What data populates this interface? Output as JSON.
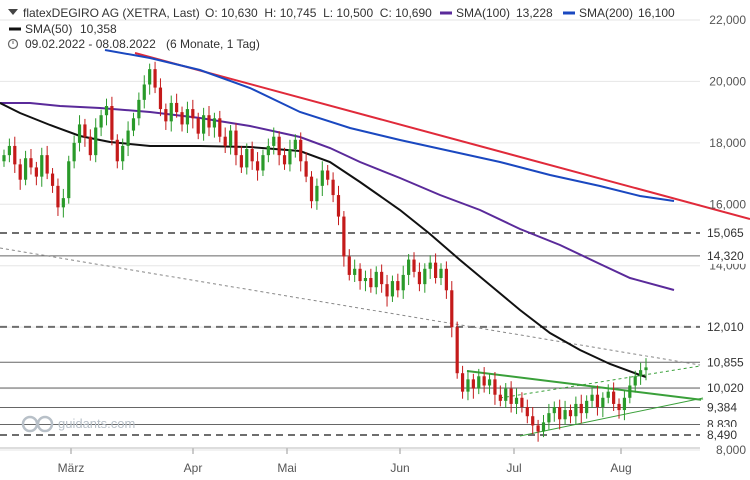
{
  "chart_data": {
    "type": "candlestick",
    "legend": {
      "instrument": "flatexDEGIRO AG (XETRA, Last)",
      "ohlc": "O: 10,630  H: 10,745  L: 10,500  C: 10,690",
      "sma100_label": "SMA(100)",
      "sma100_value": "13,228",
      "sma200_label": "SMA(200)",
      "sma200_value": "16,100",
      "sma50_label": "SMA(50)",
      "sma50_value": "10,358",
      "range": "09.02.2022 - 08.08.2022",
      "period": "(6 Monate, 1 Tag)"
    },
    "colors": {
      "up": "#2a9a2a",
      "down": "#c41a1a",
      "sma50": "#111111",
      "sma100": "#5a2a9a",
      "sma200": "#1a48c0",
      "trend_red": "#e02a3a",
      "trend_green": "#3aa03a",
      "support_dashed": "#777777",
      "support_solid": "#666666"
    },
    "ylim": [
      8000,
      22300
    ],
    "y_ticks": [
      "22,000",
      "20,000",
      "18,000",
      "16,000",
      "14,000",
      "12,000",
      "10,000",
      "8,000"
    ],
    "x_ticks": [
      "März",
      "Apr",
      "Mai",
      "Jun",
      "Jul",
      "Aug"
    ],
    "levels": [
      {
        "label": "15,065",
        "value": 15065,
        "style": "dashed"
      },
      {
        "label": "14,320",
        "value": 14320,
        "style": "solid"
      },
      {
        "label": "12,010",
        "value": 12010,
        "style": "dashed"
      },
      {
        "label": "10,855",
        "value": 10855,
        "style": "solid"
      },
      {
        "label": "10,020",
        "value": 10020,
        "style": "solid"
      },
      {
        "label": "9,384",
        "value": 9384,
        "style": "solid"
      },
      {
        "label": "8,830",
        "value": 8830,
        "style": "solid"
      },
      {
        "label": "8,490",
        "value": 8490,
        "style": "dashed"
      }
    ],
    "logo": "guidants.com"
  }
}
